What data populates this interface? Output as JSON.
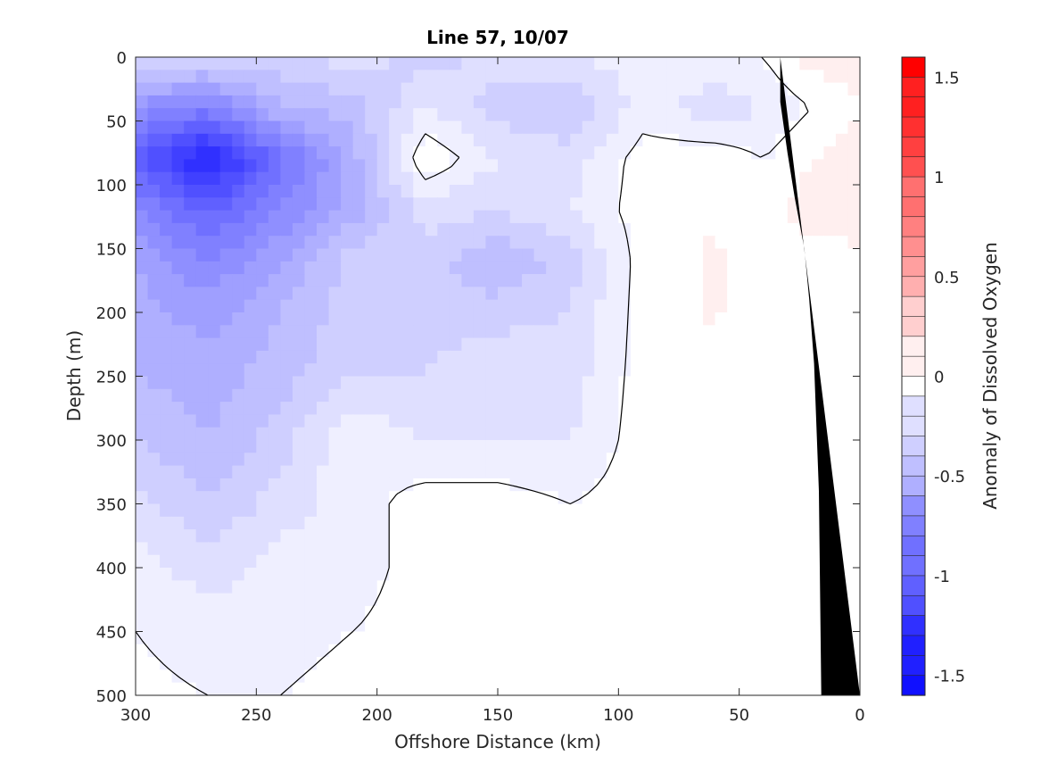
{
  "chart_data": {
    "type": "heatmap",
    "title": "Line 57, 10/07",
    "xlabel": "Offshore Distance (km)",
    "ylabel": "Depth (m)",
    "xlim": [
      300,
      0
    ],
    "ylim": [
      500,
      0
    ],
    "x_direction": "reversed",
    "y_direction": "depth increasing downward",
    "x_ticks": [
      "300",
      "250",
      "200",
      "150",
      "100",
      "50",
      "0"
    ],
    "y_ticks": [
      "0",
      "50",
      "100",
      "150",
      "200",
      "250",
      "300",
      "350",
      "400",
      "450",
      "500"
    ],
    "colorbar": {
      "label": "Anomaly of Dissolved Oxygen",
      "range": [
        -1.6,
        1.6
      ],
      "ticks": [
        "1.5",
        "1",
        "0.5",
        "0",
        "-0.5",
        "-1",
        "-1.5"
      ],
      "level_step": 0.1,
      "low_color": "#0000ff",
      "high_color": "#ff0000",
      "mid_color": "#ffffff"
    },
    "zero_contour": "black line",
    "bathymetry_color": "#000000",
    "bathymetry": [
      [
        33,
        500
      ],
      [
        34,
        340
      ],
      [
        36,
        240
      ],
      [
        38,
        190
      ],
      [
        40,
        150
      ],
      [
        44,
        110
      ],
      [
        47,
        75
      ],
      [
        50,
        35
      ],
      [
        50,
        0
      ]
    ],
    "anomaly_field": {
      "grid_x_km": [
        300,
        270,
        240,
        210,
        180,
        150,
        120,
        90,
        60,
        40,
        20,
        0
      ],
      "grid_depth_m": [
        0,
        40,
        80,
        120,
        160,
        200,
        250,
        300,
        350,
        400,
        450,
        500
      ],
      "values": [
        [
          -0.2,
          -0.25,
          -0.3,
          -0.2,
          -0.3,
          -0.2,
          -0.15,
          -0.1,
          -0.1,
          -0.05,
          0.1,
          0.1
        ],
        [
          -0.7,
          -0.8,
          -0.45,
          -0.4,
          -0.15,
          -0.3,
          -0.35,
          -0.1,
          -0.2,
          -0.15,
          -0.05,
          0.05
        ],
        [
          -1.0,
          -1.4,
          -0.9,
          -0.5,
          0.05,
          -0.15,
          -0.2,
          0.0,
          0.02,
          -0.05,
          0.05,
          0.1
        ],
        [
          -0.75,
          -1.0,
          -0.75,
          -0.5,
          -0.2,
          -0.25,
          -0.15,
          0.0,
          0.05,
          0.0,
          0.1,
          0.15
        ],
        [
          -0.55,
          -0.75,
          -0.55,
          -0.3,
          -0.3,
          -0.45,
          -0.3,
          0.0,
          0.06,
          0.0,
          0.0,
          0.0
        ],
        [
          -0.5,
          -0.6,
          -0.45,
          -0.3,
          -0.3,
          -0.3,
          -0.25,
          0.0,
          0.06,
          -0.02,
          0.0,
          0.0
        ],
        [
          -0.45,
          -0.5,
          -0.4,
          -0.25,
          -0.25,
          -0.15,
          -0.2,
          0.0,
          0.03,
          -0.02,
          0.0,
          0.0
        ],
        [
          -0.35,
          -0.45,
          -0.3,
          -0.05,
          -0.15,
          -0.15,
          -0.15,
          0.0,
          0.05,
          0.0,
          0.0,
          0.0
        ],
        [
          -0.2,
          -0.35,
          -0.2,
          -0.1,
          0.0,
          0.0,
          -0.05,
          0.0,
          0.0,
          0.0,
          0.0,
          0.0
        ],
        [
          -0.1,
          -0.2,
          -0.1,
          -0.1,
          0.0,
          0.0,
          -0.05,
          0.0,
          0.0,
          0.0,
          0.0,
          0.0
        ],
        [
          -0.05,
          -0.1,
          -0.1,
          -0.05,
          0.0,
          0.0,
          0.0,
          0.0,
          0.0,
          0.0,
          0.0,
          0.0
        ],
        [
          -0.02,
          -0.05,
          -0.05,
          0.0,
          0.0,
          0.0,
          0.0,
          0.0,
          0.0,
          0.0,
          0.0,
          0.0
        ]
      ]
    }
  }
}
